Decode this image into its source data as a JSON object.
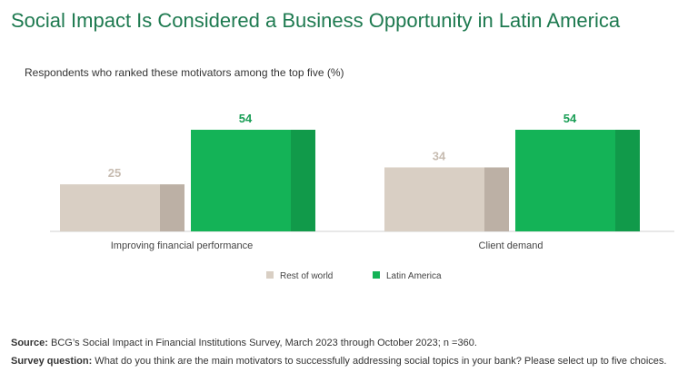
{
  "title": "Social Impact Is Considered a Business Opportunity in Latin America",
  "subtitle": "Respondents who ranked these motivators among the top five (%)",
  "chart_data": {
    "type": "bar",
    "categories": [
      "Improving financial performance",
      "Client demand"
    ],
    "series": [
      {
        "name": "Rest of world",
        "values": [
          25,
          34
        ],
        "color": "#d9cfc4",
        "shade": "#bcb0a5",
        "label_color": "#c7bcb1"
      },
      {
        "name": "Latin America",
        "values": [
          54,
          54
        ],
        "color": "#14b357",
        "shade": "#119a4a",
        "label_color": "#1a9e56"
      }
    ],
    "ylim": [
      0,
      54
    ],
    "grid": false,
    "legend_position": "bottom-center"
  },
  "footer": {
    "source_label": "Source:",
    "source_text": " BCG’s Social Impact in Financial Institutions Survey, March 2023 through October 2023; n =360.",
    "question_label": "Survey question:",
    "question_text": " What do you think are the main motivators to successfully addressing social topics in your bank? Please select up to five choices."
  }
}
